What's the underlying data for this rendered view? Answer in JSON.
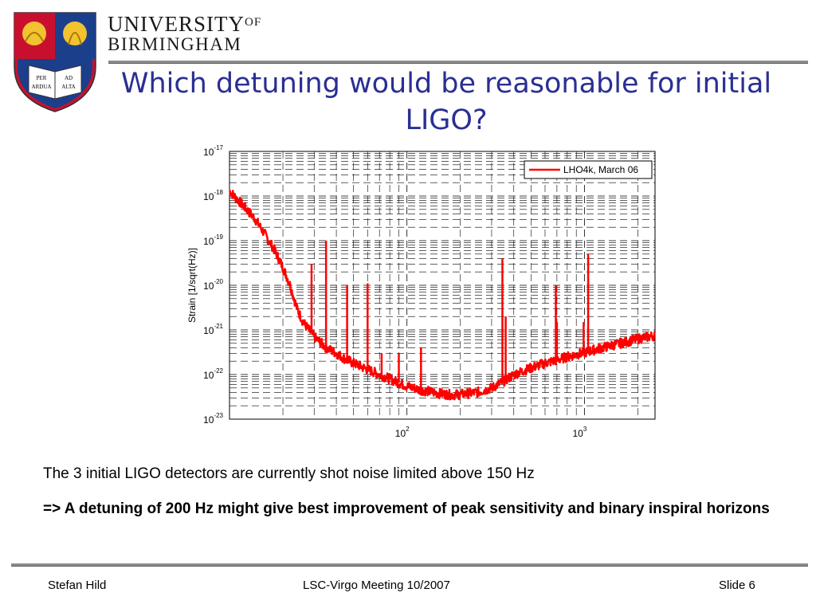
{
  "header": {
    "university_line1": "UNIVERSITY",
    "university_of": "OF",
    "university_line2": "BIRMINGHAM",
    "crest_motto": [
      "PER",
      "ARDUA",
      "AD",
      "ALTA"
    ]
  },
  "slide": {
    "title": "Which detuning would be reasonable for initial LIGO?",
    "body_line1": "The 3 initial LIGO detectors are currently shot noise limited above 150 Hz",
    "body_line2": "=> A detuning of 200 Hz might give best improvement of peak sensitivity and binary inspiral horizons"
  },
  "footer": {
    "author": "Stefan Hild",
    "meeting": "LSC-Virgo Meeting 10/2007",
    "slide_number": "Slide 6"
  },
  "colors": {
    "title": "#2a2f93",
    "series": "#ff0000"
  },
  "chart_data": {
    "type": "line",
    "ylabel": "Strain [1/sqrt(Hz)]",
    "xlabel": "",
    "x_scale": "log",
    "y_scale": "log",
    "xlim": [
      10,
      2500
    ],
    "ylim": [
      1e-23,
      1e-17
    ],
    "x_tick_labels": [
      {
        "value": 100,
        "base": "10",
        "exp": "2"
      },
      {
        "value": 1000,
        "base": "10",
        "exp": "3"
      }
    ],
    "y_tick_labels": [
      {
        "value": 1e-17,
        "base": "10",
        "exp": "-17"
      },
      {
        "value": 1e-18,
        "base": "10",
        "exp": "-18"
      },
      {
        "value": 1e-19,
        "base": "10",
        "exp": "-19"
      },
      {
        "value": 1e-20,
        "base": "10",
        "exp": "-20"
      },
      {
        "value": 1e-21,
        "base": "10",
        "exp": "-21"
      },
      {
        "value": 1e-22,
        "base": "10",
        "exp": "-22"
      },
      {
        "value": 1e-23,
        "base": "10",
        "exp": "-23"
      }
    ],
    "grid": true,
    "legend_position": "top-right",
    "series": [
      {
        "name": "LHO4k, March 06",
        "x": [
          10,
          12,
          14,
          16,
          18,
          20,
          22,
          24,
          26,
          28,
          30,
          35,
          40,
          45,
          50,
          60,
          70,
          80,
          90,
          100,
          120,
          150,
          180,
          200,
          250,
          300,
          350,
          400,
          500,
          600,
          700,
          800,
          1000,
          1200,
          1500,
          2000,
          2500
        ],
        "y": [
          1.3e-18,
          6e-19,
          3e-19,
          1.3e-19,
          6e-20,
          2.5e-20,
          1e-20,
          3e-21,
          1.5e-21,
          1e-21,
          7e-22,
          4e-22,
          3e-22,
          2.2e-22,
          1.8e-22,
          1.3e-22,
          1e-22,
          8e-23,
          6.5e-23,
          5.5e-23,
          4.5e-23,
          3.8e-23,
          3.5e-23,
          3.6e-23,
          4e-23,
          5e-23,
          7e-23,
          1e-22,
          1.4e-22,
          1.8e-22,
          2.1e-22,
          2.5e-22,
          3.1e-22,
          3.8e-22,
          4.7e-22,
          6.3e-22,
          7.5e-22
        ]
      }
    ],
    "spectral_lines": [
      {
        "x": 29,
        "peak": 3e-20
      },
      {
        "x": 35,
        "peak": 1e-19
      },
      {
        "x": 46,
        "peak": 1e-20
      },
      {
        "x": 60,
        "peak": 1.1e-20
      },
      {
        "x": 72,
        "peak": 3e-22
      },
      {
        "x": 90,
        "peak": 3e-22
      },
      {
        "x": 120,
        "peak": 4e-22
      },
      {
        "x": 345,
        "peak": 4e-20
      },
      {
        "x": 360,
        "peak": 2e-21
      },
      {
        "x": 690,
        "peak": 1e-20
      },
      {
        "x": 700,
        "peak": 1.5e-21
      },
      {
        "x": 990,
        "peak": 1.5e-21
      },
      {
        "x": 1050,
        "peak": 5e-20
      },
      {
        "x": 1200,
        "peak": 3e-22
      }
    ]
  }
}
